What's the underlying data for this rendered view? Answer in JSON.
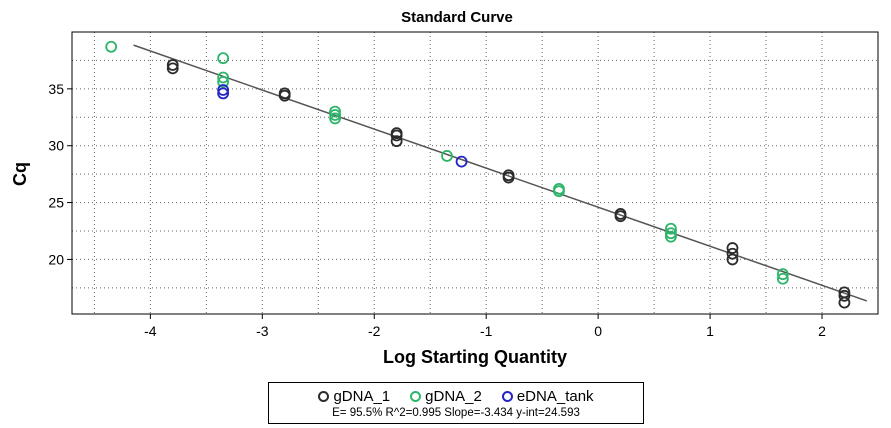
{
  "chart_data": {
    "type": "scatter",
    "title": "Standard Curve",
    "xlabel": "Log Starting Quantity",
    "ylabel": "Cq",
    "xlim": [
      -4.7,
      2.5
    ],
    "ylim": [
      15.2,
      40.0
    ],
    "x_ticks": [
      -4,
      -3,
      -2,
      -1,
      0,
      1,
      2
    ],
    "y_ticks": [
      20,
      25,
      30,
      35
    ],
    "grid": true,
    "legend_position": "bottom",
    "fit_line": {
      "slope": -3.434,
      "intercept": 24.593,
      "x_range": [
        -4.15,
        2.4
      ],
      "color": "#555555"
    },
    "series": [
      {
        "name": "gDNA_1",
        "color": "#2b2b2b",
        "points": [
          [
            -3.8,
            36.8
          ],
          [
            -3.8,
            37.1
          ],
          [
            -2.8,
            34.4
          ],
          [
            -2.8,
            34.6
          ],
          [
            -1.8,
            30.4
          ],
          [
            -1.8,
            30.9
          ],
          [
            -1.8,
            31.1
          ],
          [
            -0.8,
            27.2
          ],
          [
            -0.8,
            27.4
          ],
          [
            0.2,
            23.8
          ],
          [
            0.2,
            24.0
          ],
          [
            1.2,
            20.0
          ],
          [
            1.2,
            20.5
          ],
          [
            1.2,
            21.0
          ],
          [
            2.2,
            16.2
          ],
          [
            2.2,
            16.8
          ],
          [
            2.2,
            17.1
          ]
        ]
      },
      {
        "name": "gDNA_2",
        "color": "#2db56a",
        "points": [
          [
            -4.35,
            38.7
          ],
          [
            -3.35,
            37.7
          ],
          [
            -3.35,
            35.6
          ],
          [
            -3.35,
            36.0
          ],
          [
            -2.35,
            32.4
          ],
          [
            -2.35,
            32.7
          ],
          [
            -2.35,
            33.0
          ],
          [
            -1.35,
            29.1
          ],
          [
            -0.35,
            26.0
          ],
          [
            -0.35,
            26.2
          ],
          [
            0.65,
            22.0
          ],
          [
            0.65,
            22.3
          ],
          [
            0.65,
            22.7
          ],
          [
            1.65,
            18.3
          ],
          [
            1.65,
            18.7
          ]
        ]
      },
      {
        "name": "eDNA_tank",
        "color": "#2323c8",
        "points": [
          [
            -3.35,
            34.6
          ],
          [
            -3.35,
            34.9
          ],
          [
            -1.22,
            28.6
          ]
        ]
      }
    ],
    "stats_text": "E= 95.5% R^2=0.995 Slope=-3.434 y-int=24.593"
  }
}
